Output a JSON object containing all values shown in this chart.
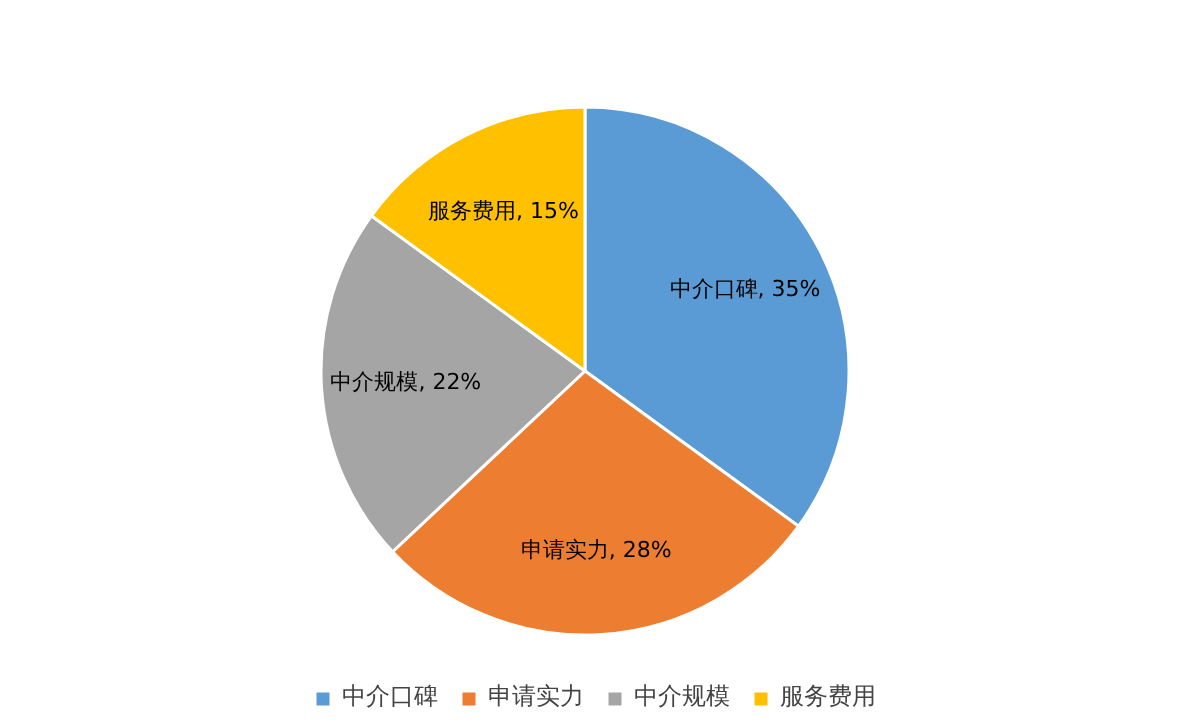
{
  "chart_data": {
    "type": "pie",
    "categories": [
      "中介口碑",
      "申请实力",
      "中介规模",
      "服务费用"
    ],
    "values": [
      35,
      28,
      22,
      15
    ],
    "colors": [
      "#5b9bd5",
      "#ed7d31",
      "#a5a5a5",
      "#ffc000"
    ],
    "value_labels": [
      "中介口碑, 35%",
      "申请实力, 28%",
      "中介规模, 22%",
      "服务费用, 15%"
    ],
    "legend": "bottom"
  }
}
